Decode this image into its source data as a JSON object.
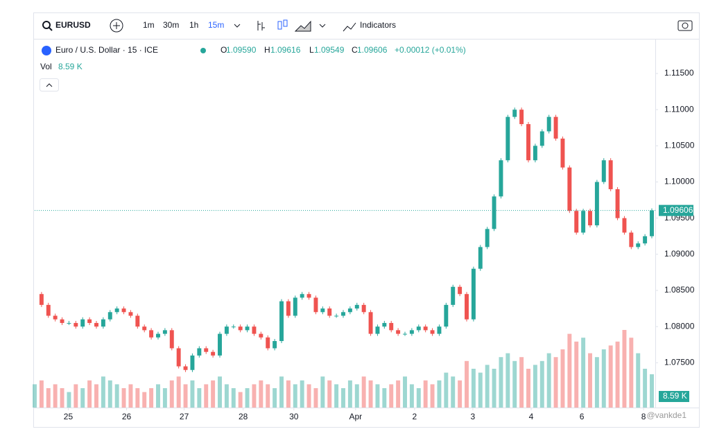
{
  "toolbar": {
    "symbol": "EURUSD",
    "intervals": [
      "1m",
      "30m",
      "1h",
      "15m"
    ],
    "active_interval": 3,
    "indicators": "Indicators"
  },
  "legend": {
    "name": "Euro / U.S. Dollar · 15 · ICE",
    "o_label": "O",
    "open": "1.09590",
    "h_label": "H",
    "high": "1.09616",
    "l_label": "L",
    "low": "1.09549",
    "c_label": "C",
    "close": "1.09606",
    "change": "+0.00012 (+0.01%)",
    "vol_label": "Vol",
    "vol": "8.59 K"
  },
  "watermark": "@vankde1",
  "chart_data": {
    "type": "candlestick",
    "values": [
      1.0845,
      1.083,
      1.0815,
      1.081,
      1.0805,
      1.0805,
      1.08,
      1.081,
      1.0805,
      1.08,
      1.081,
      1.082,
      1.0825,
      1.082,
      1.0815,
      1.08,
      1.0795,
      1.0785,
      1.079,
      1.0795,
      1.077,
      1.0745,
      1.074,
      1.076,
      1.077,
      1.0765,
      1.076,
      1.079,
      1.08,
      1.08,
      1.0795,
      1.08,
      1.079,
      1.0785,
      1.077,
      1.078,
      1.0835,
      1.0815,
      1.084,
      1.0845,
      1.084,
      1.082,
      1.0825,
      1.0815,
      1.0815,
      1.082,
      1.0825,
      1.083,
      1.082,
      1.079,
      1.08,
      1.0805,
      1.0795,
      1.079,
      1.079,
      1.0795,
      1.08,
      1.0795,
      1.079,
      1.08,
      1.083,
      1.0855,
      1.0845,
      1.081,
      1.088,
      1.091,
      1.0935,
      1.098,
      1.103,
      1.109,
      1.11,
      1.108,
      1.103,
      1.105,
      1.107,
      1.109,
      1.106,
      1.102,
      1.096,
      1.093,
      1.096,
      1.094,
      1.1,
      1.103,
      1.099,
      1.095,
      1.093,
      1.091,
      1.0915,
      1.0925,
      1.09606
    ],
    "volume": [
      6,
      7,
      5,
      6,
      5,
      4,
      6,
      5,
      7,
      6,
      8,
      7,
      6,
      5,
      6,
      5,
      4,
      5,
      6,
      5,
      7,
      8,
      6,
      7,
      5,
      6,
      7,
      8,
      6,
      5,
      4,
      5,
      6,
      7,
      6,
      5,
      8,
      7,
      6,
      7,
      6,
      5,
      8,
      7,
      6,
      5,
      7,
      6,
      8,
      7,
      6,
      5,
      6,
      7,
      8,
      6,
      5,
      7,
      6,
      7,
      9,
      8,
      7,
      12,
      10,
      9,
      11,
      10,
      13,
      14,
      12,
      13,
      10,
      11,
      12,
      14,
      13,
      15,
      19,
      17,
      18,
      14,
      13,
      15,
      16,
      17,
      20,
      18,
      14,
      10,
      8.59
    ],
    "up_color": "#26a69a",
    "down_color": "#ef5350",
    "ylim": [
      1.0688,
      1.1197
    ],
    "yticks": [
      {
        "value": 1.075,
        "label": "1.07500"
      },
      {
        "value": 1.08,
        "label": "1.08000"
      },
      {
        "value": 1.085,
        "label": "1.08500"
      },
      {
        "value": 1.09,
        "label": "1.09000"
      },
      {
        "value": 1.095,
        "label": "1.09500"
      },
      {
        "value": 1.1,
        "label": "1.10000"
      },
      {
        "value": 1.105,
        "label": "1.10500"
      },
      {
        "value": 1.11,
        "label": "1.11000"
      },
      {
        "value": 1.115,
        "label": "1.11500"
      }
    ],
    "xlim": [
      0,
      90
    ],
    "xticks": [
      {
        "value": 4.9,
        "label": "25"
      },
      {
        "value": 13.4,
        "label": "26"
      },
      {
        "value": 21.8,
        "label": "27"
      },
      {
        "value": 30.4,
        "label": "28"
      },
      {
        "value": 37.8,
        "label": "30"
      },
      {
        "value": 46.8,
        "label": "Apr"
      },
      {
        "value": 55.4,
        "label": "2"
      },
      {
        "value": 63.9,
        "label": "3"
      },
      {
        "value": 72.4,
        "label": "4"
      },
      {
        "value": 79.8,
        "label": "6"
      },
      {
        "value": 88.8,
        "label": "8"
      }
    ],
    "volume_lim": [
      0,
      40
    ]
  }
}
